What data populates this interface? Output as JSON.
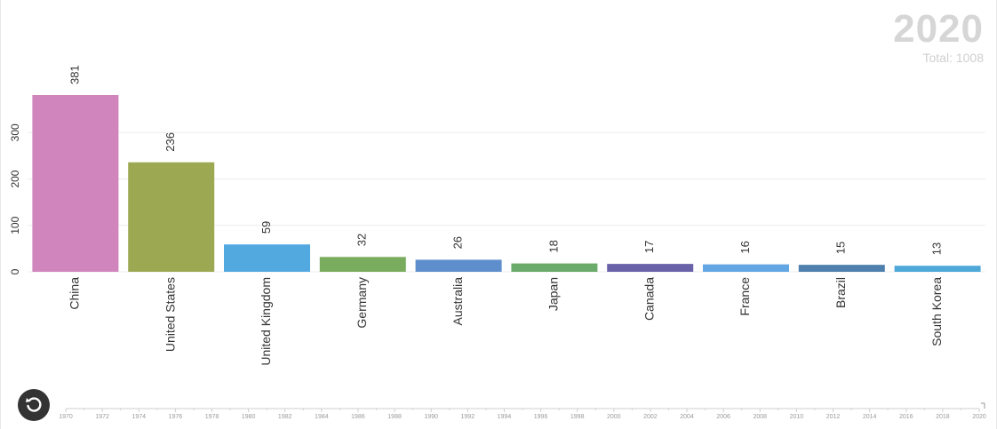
{
  "header": {
    "year": "2020",
    "total_label": "Total:",
    "total_value": "1008"
  },
  "controls": {
    "replay_icon": "replay-icon"
  },
  "timeline": {
    "ticks": [
      "1970",
      "1972",
      "1974",
      "1976",
      "1978",
      "1980",
      "1982",
      "1984",
      "1986",
      "1988",
      "1990",
      "1992",
      "1994",
      "1996",
      "1998",
      "2000",
      "2002",
      "2004",
      "2006",
      "2008",
      "2010",
      "2012",
      "2014",
      "2016",
      "2018",
      "2020"
    ],
    "current": "2020"
  },
  "chart_data": {
    "type": "bar",
    "categories": [
      "China",
      "United States",
      "United Kingdom",
      "Germany",
      "Australia",
      "Japan",
      "Canada",
      "France",
      "Brazil",
      "South Korea"
    ],
    "values": [
      381,
      236,
      59,
      32,
      26,
      18,
      17,
      16,
      15,
      13
    ],
    "colors": [
      "#d085bc",
      "#9ca952",
      "#52a9e0",
      "#7aac5e",
      "#5e8fcc",
      "#6aaa6a",
      "#6a62a8",
      "#62a6e4",
      "#4f7fad",
      "#4ea8d8"
    ],
    "yticks": [
      0,
      100,
      200,
      300
    ],
    "ylim": [
      0,
      400
    ],
    "grid": true
  }
}
